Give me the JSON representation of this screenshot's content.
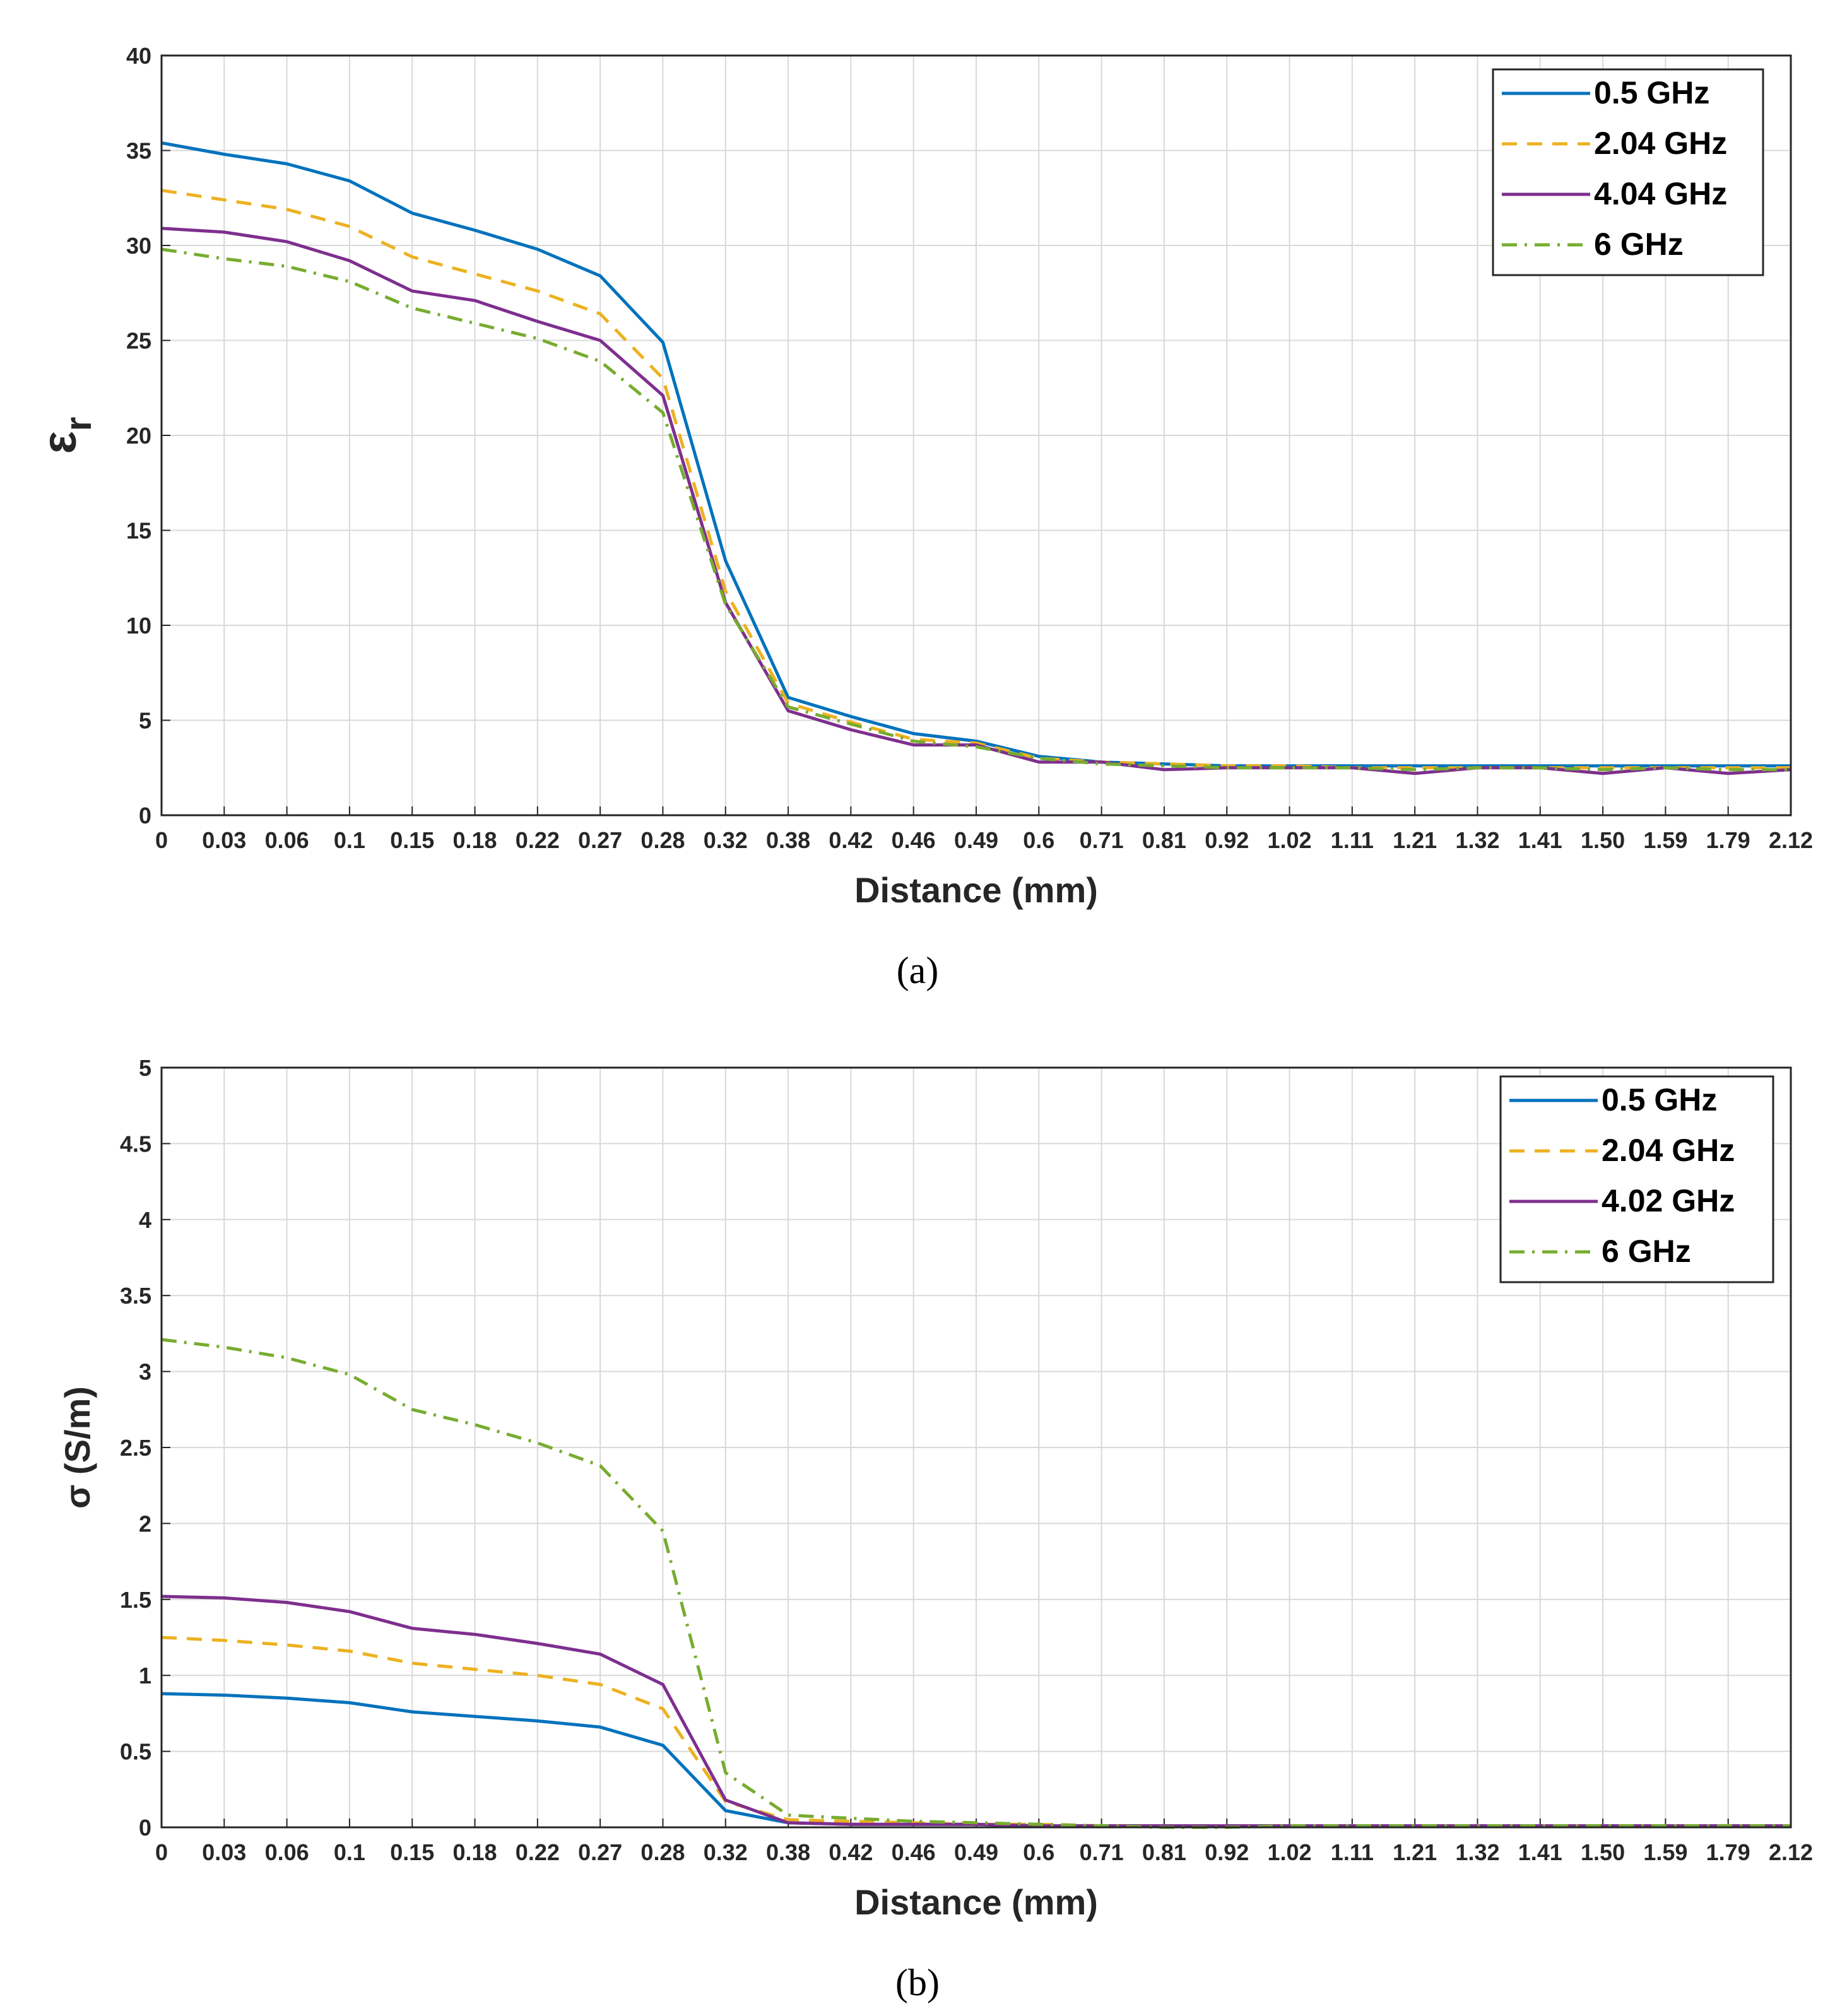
{
  "chart_data": [
    {
      "type": "line",
      "panel": "a",
      "caption": "(a)",
      "xlabel": "Distance (mm)",
      "ylabel_main": "ε",
      "ylabel_sub": "r",
      "ylim": [
        0,
        40
      ],
      "yticks": [
        "0",
        "5",
        "10",
        "15",
        "20",
        "25",
        "30",
        "35",
        "40"
      ],
      "categories": [
        "0",
        "0.03",
        "0.06",
        "0.1",
        "0.15",
        "0.18",
        "0.22",
        "0.27",
        "0.28",
        "0.32",
        "0.38",
        "0.42",
        "0.46",
        "0.49",
        "0.6",
        "0.71",
        "0.81",
        "0.92",
        "1.02",
        "1.11",
        "1.21",
        "1.32",
        "1.41",
        "1.50",
        "1.59",
        "1.79",
        "2.12"
      ],
      "grid": true,
      "legend_position": "top-right",
      "series": [
        {
          "name": "0.5 GHz",
          "color": "#0072bd",
          "style": "solid",
          "values": [
            35.4,
            34.8,
            34.3,
            33.4,
            31.7,
            30.8,
            29.8,
            28.4,
            24.9,
            13.4,
            6.2,
            5.2,
            4.3,
            3.9,
            3.1,
            2.8,
            2.7,
            2.6,
            2.6,
            2.6,
            2.6,
            2.6,
            2.6,
            2.6,
            2.6,
            2.6,
            2.6
          ]
        },
        {
          "name": "2.04 GHz",
          "color": "#edb120",
          "style": "dashed",
          "values": [
            32.9,
            32.4,
            31.9,
            31.0,
            29.4,
            28.5,
            27.6,
            26.4,
            23.0,
            11.8,
            5.9,
            4.9,
            4.0,
            3.8,
            3.0,
            2.8,
            2.7,
            2.6,
            2.6,
            2.5,
            2.5,
            2.5,
            2.5,
            2.5,
            2.5,
            2.5,
            2.5
          ]
        },
        {
          "name": "4.04 GHz",
          "color": "#7e2f8e",
          "style": "solid",
          "values": [
            30.9,
            30.7,
            30.2,
            29.2,
            27.6,
            27.1,
            26.0,
            25.0,
            22.1,
            11.2,
            5.5,
            4.5,
            3.7,
            3.7,
            2.8,
            2.8,
            2.4,
            2.5,
            2.5,
            2.5,
            2.2,
            2.5,
            2.5,
            2.2,
            2.5,
            2.2,
            2.4
          ]
        },
        {
          "name": "6 GHz",
          "color": "#77ac30",
          "style": "dashdot",
          "values": [
            29.8,
            29.3,
            28.9,
            28.1,
            26.7,
            25.9,
            25.1,
            23.9,
            21.2,
            11.1,
            5.7,
            4.8,
            3.9,
            3.6,
            3.0,
            2.7,
            2.6,
            2.5,
            2.5,
            2.5,
            2.4,
            2.5,
            2.5,
            2.4,
            2.5,
            2.4,
            2.4
          ]
        }
      ]
    },
    {
      "type": "line",
      "panel": "b",
      "caption": "(b)",
      "xlabel": "Distance (mm)",
      "ylabel": "σ (S/m)",
      "ylim": [
        0,
        5
      ],
      "yticks": [
        "0",
        "0.5",
        "1",
        "1.5",
        "2",
        "2.5",
        "3",
        "3.5",
        "4",
        "4.5",
        "5"
      ],
      "categories": [
        "0",
        "0.03",
        "0.06",
        "0.1",
        "0.15",
        "0.18",
        "0.22",
        "0.27",
        "0.28",
        "0.32",
        "0.38",
        "0.42",
        "0.46",
        "0.49",
        "0.6",
        "0.71",
        "0.81",
        "0.92",
        "1.02",
        "1.11",
        "1.21",
        "1.32",
        "1.41",
        "1.50",
        "1.59",
        "1.79",
        "2.12"
      ],
      "grid": true,
      "legend_position": "top-right",
      "series": [
        {
          "name": "0.5 GHz",
          "color": "#0072bd",
          "style": "solid",
          "values": [
            0.88,
            0.87,
            0.85,
            0.82,
            0.76,
            0.73,
            0.7,
            0.66,
            0.54,
            0.11,
            0.03,
            0.02,
            0.02,
            0.02,
            0.01,
            0.01,
            0.01,
            0.01,
            0.01,
            0.01,
            0.01,
            0.01,
            0.01,
            0.01,
            0.01,
            0.01,
            0.01
          ]
        },
        {
          "name": "2.04 GHz",
          "color": "#edb120",
          "style": "dashed",
          "values": [
            1.25,
            1.23,
            1.2,
            1.16,
            1.08,
            1.04,
            1.0,
            0.94,
            0.78,
            0.17,
            0.05,
            0.04,
            0.03,
            0.02,
            0.02,
            0.01,
            0.01,
            0.01,
            0.01,
            0.01,
            0.01,
            0.01,
            0.01,
            0.01,
            0.01,
            0.01,
            0.01
          ]
        },
        {
          "name": "4.02 GHz",
          "color": "#7e2f8e",
          "style": "solid",
          "values": [
            1.52,
            1.51,
            1.48,
            1.42,
            1.31,
            1.27,
            1.21,
            1.14,
            0.94,
            0.18,
            0.03,
            0.02,
            0.02,
            0.02,
            0.01,
            0.01,
            0.01,
            0.01,
            0.01,
            0.01,
            0.01,
            0.01,
            0.01,
            0.01,
            0.01,
            0.01,
            0.01
          ]
        },
        {
          "name": "6 GHz",
          "color": "#77ac30",
          "style": "dashdot",
          "values": [
            3.21,
            3.16,
            3.09,
            2.98,
            2.75,
            2.65,
            2.53,
            2.38,
            1.95,
            0.36,
            0.08,
            0.06,
            0.04,
            0.03,
            0.02,
            0.01,
            0.0,
            0.0,
            0.01,
            0.01,
            0.01,
            0.01,
            0.01,
            0.01,
            0.01,
            0.01,
            0.01
          ]
        }
      ]
    }
  ]
}
